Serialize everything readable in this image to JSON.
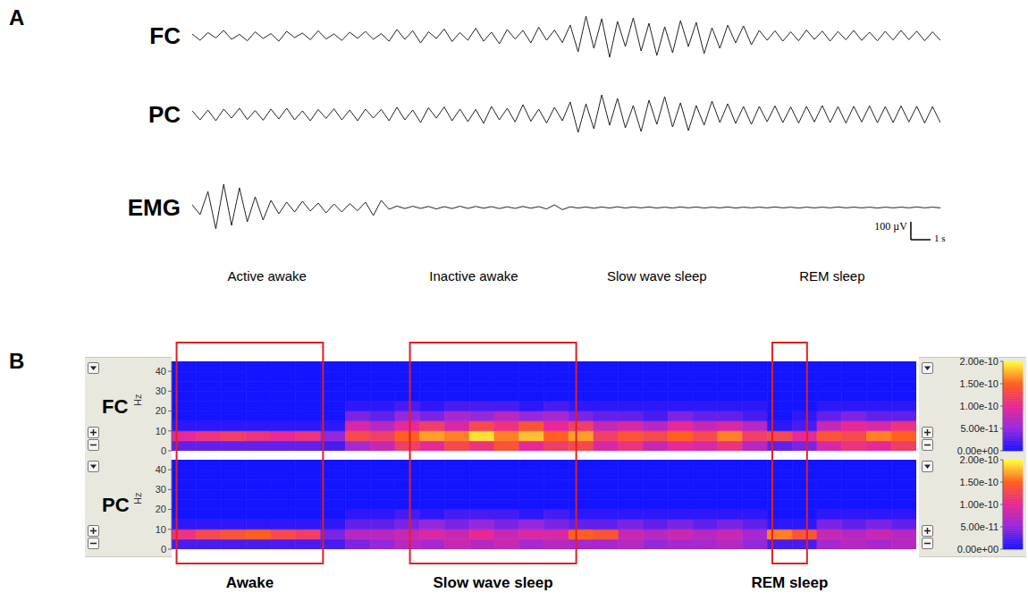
{
  "chart_data": [
    {
      "panel": "A",
      "type": "line",
      "xlim": [
        0,
        38
      ],
      "ylim": [
        -200,
        200
      ],
      "tick_labels": false,
      "x": [
        0,
        0.4,
        0.8,
        1.2,
        1.6,
        2,
        2.4,
        2.8,
        3.2,
        3.6,
        4,
        4.4,
        4.8,
        5.2,
        5.6,
        6,
        6.4,
        6.8,
        7.2,
        7.6,
        8,
        8.4,
        8.8,
        9.2,
        9.6,
        10,
        10.4,
        10.8,
        11.2,
        11.6,
        12,
        12.4,
        12.8,
        13.2,
        13.6,
        14,
        14.4,
        14.8,
        15.2,
        15.6,
        16,
        16.4,
        16.8,
        17.2,
        17.6,
        18,
        18.4,
        18.8,
        19.2,
        19.6,
        20,
        20.4,
        20.8,
        21.2,
        21.6,
        22,
        22.4,
        22.8,
        23.2,
        23.6,
        24,
        24.4,
        24.8,
        25.2,
        25.6,
        26,
        26.4,
        26.8,
        27.2,
        27.6,
        28,
        28.4,
        28.8,
        29.2,
        29.6,
        30,
        30.4,
        30.8,
        31.2,
        31.6,
        32,
        32.4,
        32.8,
        33.2,
        33.6,
        34,
        34.4,
        34.8,
        35.2,
        35.6,
        36,
        36.4,
        36.8,
        37.2,
        37.6,
        38
      ],
      "series": [
        {
          "name": "FC",
          "color": "#222222",
          "values": [
            10,
            -25,
            18,
            -12,
            30,
            -20,
            8,
            -28,
            22,
            -15,
            12,
            -30,
            25,
            -10,
            15,
            -22,
            28,
            -18,
            10,
            -26,
            20,
            -14,
            24,
            -20,
            12,
            -30,
            35,
            -20,
            28,
            -40,
            22,
            -15,
            38,
            -32,
            18,
            -25,
            42,
            -30,
            20,
            -45,
            35,
            -18,
            30,
            -40,
            48,
            -25,
            32,
            -38,
            60,
            -90,
            110,
            -70,
            95,
            -120,
            80,
            -60,
            100,
            -85,
            70,
            -110,
            50,
            -95,
            85,
            -60,
            75,
            -100,
            45,
            -70,
            60,
            -40,
            55,
            -50,
            30,
            -25,
            28,
            -30,
            22,
            -28,
            32,
            -20,
            26,
            -30,
            24,
            -22,
            30,
            -26,
            20,
            -28,
            25,
            -24,
            30,
            -22,
            26,
            -28,
            22,
            -25
          ]
        },
        {
          "name": "PC",
          "color": "#222222",
          "values": [
            20,
            -30,
            25,
            -35,
            30,
            -20,
            35,
            -28,
            22,
            -32,
            30,
            -25,
            35,
            -30,
            20,
            -35,
            28,
            -22,
            32,
            -30,
            25,
            -35,
            30,
            -20,
            28,
            -35,
            40,
            -30,
            25,
            -45,
            38,
            -20,
            42,
            -35,
            30,
            -40,
            28,
            -50,
            45,
            -30,
            35,
            -42,
            55,
            -38,
            30,
            -48,
            40,
            -35,
            70,
            -100,
            60,
            -80,
            110,
            -60,
            90,
            -75,
            50,
            -95,
            80,
            -55,
            100,
            -70,
            65,
            -90,
            50,
            -60,
            75,
            -45,
            60,
            -50,
            45,
            -55,
            45,
            -40,
            48,
            -45,
            42,
            -48,
            45,
            -42,
            50,
            -45,
            44,
            -48,
            46,
            -42,
            48,
            -46,
            44,
            -45,
            48,
            -42,
            46,
            -48,
            44,
            -46
          ]
        },
        {
          "name": "EMG",
          "color": "#222222",
          "values": [
            15,
            -40,
            90,
            -120,
            130,
            -100,
            110,
            -80,
            60,
            -70,
            40,
            -35,
            30,
            -25,
            35,
            -20,
            25,
            -30,
            20,
            -25,
            22,
            -18,
            30,
            -45,
            40,
            -10,
            8,
            -6,
            7,
            -5,
            6,
            -8,
            5,
            -6,
            7,
            -5,
            6,
            -4,
            5,
            -6,
            4,
            -5,
            6,
            -4,
            5,
            -8,
            15,
            -12,
            4,
            -3,
            3,
            -4,
            3,
            -3,
            4,
            -3,
            3,
            -2,
            3,
            -3,
            2,
            -3,
            3,
            -2,
            3,
            -3,
            2,
            -2,
            3,
            -3,
            2,
            -2,
            2,
            -2,
            3,
            -2,
            2,
            -3,
            2,
            -2,
            2,
            -2,
            3,
            -2,
            2,
            -2,
            2,
            -3,
            2,
            -2,
            2,
            -2,
            3,
            -2,
            2,
            -2
          ]
        }
      ],
      "scale_bar": {
        "y": 100,
        "y_label": "100 µV",
        "x": 1,
        "x_label": "1 s"
      },
      "annotations": [
        {
          "text": "Active awake",
          "x": 3.8
        },
        {
          "text": "Inactive awake",
          "x": 14.3
        },
        {
          "text": "Slow wave sleep",
          "x": 23.6
        },
        {
          "text": "REM sleep",
          "x": 32.5
        }
      ]
    },
    {
      "panel": "B",
      "type": "heatmap",
      "xlim": [
        0,
        30
      ],
      "ylim": [
        0,
        45
      ],
      "yticks": [
        0,
        10,
        20,
        30,
        40
      ],
      "y_label": "Hz",
      "tick_labels": "y",
      "y_bins": [
        0,
        5,
        10,
        15,
        20,
        25,
        30,
        35,
        40,
        45
      ],
      "colorbar": {
        "lim": [
          0,
          2e-10
        ],
        "ticks": [
          {
            "value": 0,
            "label": "0.00e+00"
          },
          {
            "value": 5e-11,
            "label": "5.00e-11"
          },
          {
            "value": 1e-10,
            "label": "1.00e-10"
          },
          {
            "value": 1.5e-10,
            "label": "1.50e-10"
          },
          {
            "value": 2e-10,
            "label": "2.00e-10"
          }
        ]
      },
      "series": [
        {
          "name": "FC",
          "z": [
            [
              3e-11,
              3e-11,
              3e-11,
              3e-11,
              3e-11,
              3e-11,
              2e-11,
              6e-11,
              8e-11,
              1.2e-10,
              1e-10,
              1.3e-10,
              1.1e-10,
              1.4e-10,
              1e-10,
              1.2e-10,
              1.3e-10,
              9e-11,
              1.1e-10,
              8e-11,
              1e-10,
              9e-11,
              1.1e-10,
              7e-11,
              3e-11,
              4e-11,
              9e-11,
              1.1e-10,
              1e-10,
              1.2e-10
            ],
            [
              1e-10,
              1.1e-10,
              1.2e-10,
              1.1e-10,
              1e-10,
              1.1e-10,
              5e-11,
              1.3e-10,
              1.2e-10,
              1.5e-10,
              1.7e-10,
              1.6e-10,
              1.9e-10,
              1.6e-10,
              1.8e-10,
              1.5e-10,
              1.7e-10,
              1.2e-10,
              1.4e-10,
              1.3e-10,
              1.5e-10,
              1.3e-10,
              1.6e-10,
              1.2e-10,
              1.3e-10,
              1e-10,
              1.4e-10,
              1.3e-10,
              1.6e-10,
              1.5e-10
            ],
            [
              1e-11,
              1e-11,
              1e-11,
              1e-11,
              1e-11,
              1e-11,
              1e-11,
              9e-11,
              7e-11,
              1e-10,
              1.2e-10,
              9e-11,
              1.3e-10,
              1.1e-10,
              1.4e-10,
              1e-10,
              1.2e-10,
              8e-11,
              9e-11,
              7e-11,
              1e-10,
              8e-11,
              9e-11,
              7e-11,
              1e-11,
              2e-11,
              8e-11,
              1e-10,
              9e-11,
              1.1e-10
            ],
            [
              0,
              0,
              0,
              0,
              0,
              0,
              0,
              4e-11,
              3e-11,
              5e-11,
              4e-11,
              6e-11,
              5e-11,
              7e-11,
              5e-11,
              6e-11,
              4e-11,
              3e-11,
              3e-11,
              2e-11,
              4e-11,
              3e-11,
              3e-11,
              2e-11,
              0,
              1e-11,
              3e-11,
              4e-11,
              3e-11,
              3e-11
            ],
            [
              0,
              0,
              0,
              0,
              0,
              0,
              0,
              1e-11,
              1e-11,
              2e-11,
              1e-11,
              2e-11,
              2e-11,
              2e-11,
              1e-11,
              2e-11,
              1e-11,
              1e-11,
              1e-11,
              1e-11,
              1e-11,
              1e-11,
              1e-11,
              1e-11,
              0,
              0,
              1e-11,
              1e-11,
              1e-11,
              1e-11
            ],
            [
              0,
              0,
              0,
              0,
              0,
              0,
              0,
              0,
              0,
              0,
              0,
              0,
              0,
              0,
              0,
              0,
              0,
              0,
              0,
              0,
              0,
              0,
              0,
              0,
              0,
              0,
              0,
              0,
              0,
              0
            ],
            [
              0,
              0,
              0,
              0,
              0,
              0,
              0,
              0,
              0,
              0,
              0,
              0,
              0,
              0,
              0,
              0,
              0,
              0,
              0,
              0,
              0,
              0,
              0,
              0,
              0,
              0,
              0,
              0,
              0,
              0
            ],
            [
              0,
              0,
              0,
              0,
              0,
              0,
              0,
              0,
              0,
              0,
              0,
              0,
              0,
              0,
              0,
              0,
              0,
              0,
              0,
              0,
              0,
              0,
              0,
              0,
              0,
              0,
              0,
              0,
              0,
              0
            ],
            [
              0,
              0,
              0,
              0,
              0,
              0,
              0,
              0,
              0,
              0,
              0,
              0,
              0,
              0,
              0,
              0,
              0,
              0,
              0,
              0,
              0,
              0,
              0,
              0,
              0,
              0,
              0,
              0,
              0,
              0
            ]
          ]
        },
        {
          "name": "PC",
          "z": [
            [
              2e-11,
              2e-11,
              2e-11,
              2e-11,
              2e-11,
              2e-11,
              2e-11,
              4e-11,
              5e-11,
              7e-11,
              6e-11,
              8e-11,
              7e-11,
              8e-11,
              6e-11,
              7e-11,
              6e-11,
              6e-11,
              7e-11,
              5e-11,
              6e-11,
              6e-11,
              7e-11,
              5e-11,
              2e-11,
              2e-11,
              6e-11,
              7e-11,
              6e-11,
              7e-11
            ],
            [
              1.1e-10,
              1.3e-10,
              1.4e-10,
              1.5e-10,
              1.3e-10,
              1.2e-10,
              4e-11,
              7e-11,
              7e-11,
              8e-11,
              9e-11,
              8e-11,
              1e-10,
              8e-11,
              9e-11,
              9e-11,
              1.5e-10,
              1.4e-10,
              8e-11,
              7e-11,
              8e-11,
              7e-11,
              8e-11,
              6e-11,
              1.6e-10,
              1.4e-10,
              8e-11,
              7e-11,
              8e-11,
              7e-11
            ],
            [
              1e-11,
              1e-11,
              1e-11,
              1e-11,
              1e-11,
              1e-11,
              1e-11,
              3e-11,
              3e-11,
              4e-11,
              5e-11,
              4e-11,
              5e-11,
              4e-11,
              5e-11,
              4e-11,
              3e-11,
              3e-11,
              4e-11,
              3e-11,
              4e-11,
              3e-11,
              4e-11,
              3e-11,
              1e-11,
              1e-11,
              4e-11,
              3e-11,
              4e-11,
              3e-11
            ],
            [
              0,
              0,
              0,
              0,
              0,
              0,
              0,
              1e-11,
              1e-11,
              2e-11,
              1e-11,
              2e-11,
              2e-11,
              2e-11,
              1e-11,
              2e-11,
              1e-11,
              1e-11,
              1e-11,
              1e-11,
              1e-11,
              1e-11,
              1e-11,
              1e-11,
              0,
              0,
              1e-11,
              1e-11,
              1e-11,
              1e-11
            ],
            [
              0,
              0,
              0,
              0,
              0,
              0,
              0,
              0,
              0,
              0,
              0,
              0,
              0,
              0,
              0,
              0,
              0,
              0,
              0,
              0,
              0,
              0,
              0,
              0,
              0,
              0,
              0,
              0,
              0,
              0
            ],
            [
              0,
              0,
              0,
              0,
              0,
              0,
              0,
              0,
              0,
              0,
              0,
              0,
              0,
              0,
              0,
              0,
              0,
              0,
              0,
              0,
              0,
              0,
              0,
              0,
              0,
              0,
              0,
              0,
              0,
              0
            ],
            [
              0,
              0,
              0,
              0,
              0,
              0,
              0,
              0,
              0,
              0,
              0,
              0,
              0,
              0,
              0,
              0,
              0,
              0,
              0,
              0,
              0,
              0,
              0,
              0,
              0,
              0,
              0,
              0,
              0,
              0
            ],
            [
              0,
              0,
              0,
              0,
              0,
              0,
              0,
              0,
              0,
              0,
              0,
              0,
              0,
              0,
              0,
              0,
              0,
              0,
              0,
              0,
              0,
              0,
              0,
              0,
              0,
              0,
              0,
              0,
              0,
              0
            ],
            [
              0,
              0,
              0,
              0,
              0,
              0,
              0,
              0,
              0,
              0,
              0,
              0,
              0,
              0,
              0,
              0,
              0,
              0,
              0,
              0,
              0,
              0,
              0,
              0,
              0,
              0,
              0,
              0,
              0,
              0
            ]
          ]
        }
      ],
      "annotations": [
        {
          "text": "Awake",
          "x": [
            0.2,
            6.1
          ]
        },
        {
          "text": "Slow wave sleep",
          "x": [
            9.6,
            16.3
          ]
        },
        {
          "text": "REM sleep",
          "x": [
            24.2,
            25.6
          ]
        }
      ]
    }
  ]
}
